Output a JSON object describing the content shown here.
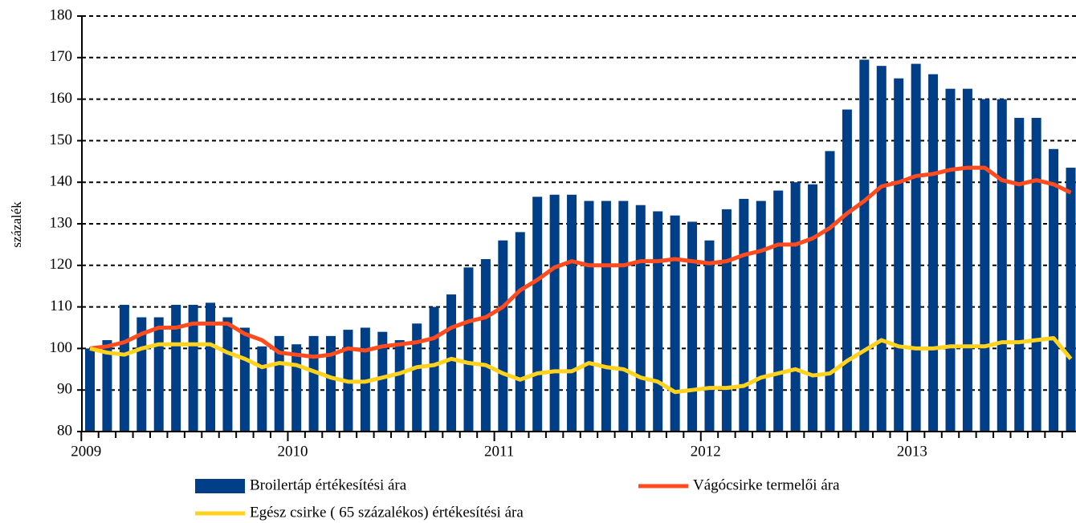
{
  "chart_data": {
    "type": "bar",
    "y_label": "százalék",
    "categories": [
      "2009",
      null,
      null,
      null,
      null,
      null,
      null,
      null,
      null,
      null,
      null,
      null,
      "2010",
      null,
      null,
      null,
      null,
      null,
      null,
      null,
      null,
      null,
      null,
      null,
      "2011",
      null,
      null,
      null,
      null,
      null,
      null,
      null,
      null,
      null,
      null,
      null,
      "2012",
      null,
      null,
      null,
      null,
      null,
      null,
      null,
      null,
      null,
      null,
      null,
      "2013",
      null,
      null,
      null,
      null,
      null,
      null,
      null,
      null,
      null
    ],
    "series": [
      {
        "name": "Broilertáp értékesítési ára",
        "type": "bar",
        "color": "#003f87",
        "values": [
          100,
          102,
          110.5,
          107.5,
          107.5,
          110.5,
          110.5,
          111,
          107.5,
          105,
          100.5,
          103,
          101,
          103,
          103,
          104.5,
          105,
          104,
          102,
          106,
          110,
          113,
          119.5,
          121.5,
          126,
          128,
          136.5,
          137,
          137,
          135.5,
          135.5,
          135.5,
          134.5,
          133,
          132,
          130.5,
          126,
          133.5,
          136,
          135.5,
          138,
          140,
          139.5,
          147.5,
          157.5,
          169.5,
          168,
          165,
          168.5,
          166,
          162.5,
          162.5,
          160,
          160,
          155.5,
          155.5,
          148,
          143.5
        ]
      },
      {
        "name": "Vágócsirke termelői ára",
        "type": "line",
        "color": "#ff4b1e",
        "values": [
          100,
          100.5,
          101.5,
          103.5,
          105,
          105,
          106,
          106,
          106,
          103.5,
          102,
          99,
          98.5,
          98,
          98.5,
          100,
          99.5,
          100.5,
          101,
          101.5,
          102.5,
          105,
          106.5,
          107.5,
          110,
          114,
          116.5,
          119.5,
          121,
          120,
          120,
          120,
          121,
          121,
          121.5,
          121,
          120.5,
          121,
          122.5,
          123.5,
          125,
          125,
          126.5,
          129,
          132.5,
          135.5,
          139,
          140,
          141.5,
          142,
          143,
          143.5,
          143.5,
          140.5,
          139.5,
          140.5,
          139.5,
          137.5
        ]
      },
      {
        "name": "Egész csirke ( 65 százalékos) értékesítési ára",
        "type": "line",
        "color": "#ffd21e",
        "values": [
          100,
          99,
          98.5,
          100,
          101,
          101,
          101,
          101,
          99,
          97.5,
          95.5,
          96.5,
          96,
          94.5,
          93,
          92,
          92,
          93,
          94,
          95.5,
          96,
          97.5,
          96.5,
          96,
          94,
          92.5,
          94,
          94.5,
          94.5,
          96.5,
          95.5,
          95,
          93,
          92,
          89.5,
          90,
          90.5,
          90.5,
          91,
          93,
          94,
          95,
          93.5,
          94,
          97,
          99.5,
          102,
          100.5,
          100,
          100,
          100.5,
          100.5,
          100.5,
          101.5,
          101.5,
          102,
          102.5,
          97.5
        ]
      }
    ],
    "ylim": [
      80,
      180
    ],
    "yticks": [
      80,
      90,
      100,
      110,
      120,
      130,
      140,
      150,
      160,
      170,
      180
    ],
    "grid": true
  }
}
